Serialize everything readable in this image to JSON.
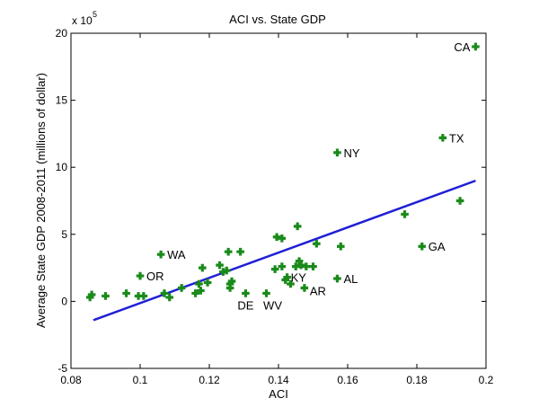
{
  "chart_data": {
    "type": "scatter",
    "title": "ACI vs. State GDP",
    "xlabel": "ACI",
    "ylabel": "Average State GDP 2008-2011 (millions of dollar)",
    "exponent_base": "x 10",
    "exponent_power": "5",
    "xlim": [
      0.08,
      0.2
    ],
    "ylim": [
      -5,
      20
    ],
    "x_ticks": [
      0.08,
      0.1,
      0.12,
      0.14,
      0.16,
      0.18,
      0.2
    ],
    "x_tick_labels": [
      "0.08",
      "0.1",
      "0.12",
      "0.14",
      "0.16",
      "0.18",
      "0.2"
    ],
    "y_ticks": [
      -5,
      0,
      5,
      10,
      15,
      20
    ],
    "y_tick_labels": [
      "-5",
      "0",
      "5",
      "10",
      "15",
      "20"
    ],
    "y_units_note": "y values in units of 10^5 millions of dollars",
    "marker_color": "#1a8a1a",
    "fit_color": "#1f1fd6",
    "points": [
      {
        "x": 0.0855,
        "y": 0.3
      },
      {
        "x": 0.086,
        "y": 0.5
      },
      {
        "x": 0.09,
        "y": 0.4
      },
      {
        "x": 0.096,
        "y": 0.6
      },
      {
        "x": 0.0995,
        "y": 0.4
      },
      {
        "x": 0.1,
        "y": 1.9,
        "label": "OR"
      },
      {
        "x": 0.101,
        "y": 0.4
      },
      {
        "x": 0.106,
        "y": 3.5,
        "label": "WA"
      },
      {
        "x": 0.107,
        "y": 0.6
      },
      {
        "x": 0.1085,
        "y": 0.3
      },
      {
        "x": 0.112,
        "y": 1.0
      },
      {
        "x": 0.116,
        "y": 0.6
      },
      {
        "x": 0.117,
        "y": 1.3
      },
      {
        "x": 0.1175,
        "y": 0.8
      },
      {
        "x": 0.118,
        "y": 2.5
      },
      {
        "x": 0.1195,
        "y": 1.4
      },
      {
        "x": 0.123,
        "y": 2.7
      },
      {
        "x": 0.124,
        "y": 2.2
      },
      {
        "x": 0.125,
        "y": 2.3
      },
      {
        "x": 0.1255,
        "y": 3.7
      },
      {
        "x": 0.126,
        "y": 1.0
      },
      {
        "x": 0.126,
        "y": 1.3
      },
      {
        "x": 0.1265,
        "y": 1.5
      },
      {
        "x": 0.129,
        "y": 3.7
      },
      {
        "x": 0.1305,
        "y": 0.6,
        "label": "DE"
      },
      {
        "x": 0.1365,
        "y": 0.6,
        "label": "WV"
      },
      {
        "x": 0.139,
        "y": 2.4
      },
      {
        "x": 0.1395,
        "y": 4.8
      },
      {
        "x": 0.141,
        "y": 2.6
      },
      {
        "x": 0.141,
        "y": 4.7
      },
      {
        "x": 0.142,
        "y": 1.6
      },
      {
        "x": 0.1425,
        "y": 1.8,
        "label": "KY"
      },
      {
        "x": 0.1435,
        "y": 1.3
      },
      {
        "x": 0.145,
        "y": 2.6
      },
      {
        "x": 0.1455,
        "y": 5.6
      },
      {
        "x": 0.146,
        "y": 3.0
      },
      {
        "x": 0.1465,
        "y": 2.7
      },
      {
        "x": 0.1475,
        "y": 1.0,
        "label": "AR"
      },
      {
        "x": 0.148,
        "y": 2.6
      },
      {
        "x": 0.15,
        "y": 2.6
      },
      {
        "x": 0.151,
        "y": 4.3
      },
      {
        "x": 0.157,
        "y": 1.7,
        "label": "AL"
      },
      {
        "x": 0.157,
        "y": 11.1,
        "label": "NY"
      },
      {
        "x": 0.158,
        "y": 4.1
      },
      {
        "x": 0.1765,
        "y": 6.5
      },
      {
        "x": 0.1815,
        "y": 4.1,
        "label": "GA"
      },
      {
        "x": 0.1875,
        "y": 12.2,
        "label": "TX"
      },
      {
        "x": 0.1925,
        "y": 7.5
      },
      {
        "x": 0.197,
        "y": 19.0,
        "label": "CA"
      }
    ],
    "fit_line": [
      {
        "x": 0.0865,
        "y": -1.4
      },
      {
        "x": 0.197,
        "y": 9.0
      }
    ]
  }
}
